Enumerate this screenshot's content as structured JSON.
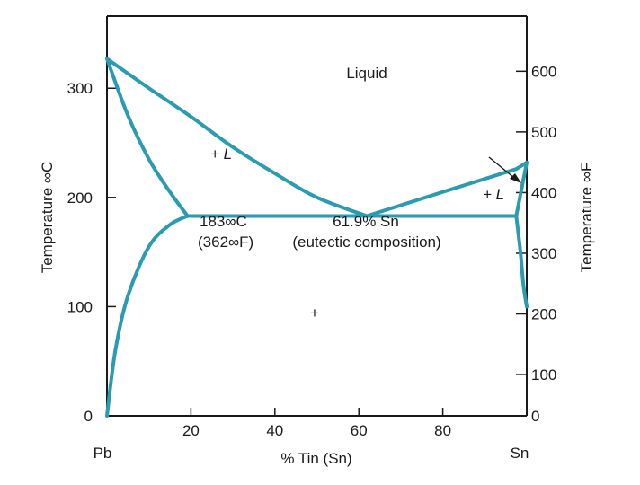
{
  "chart_data": {
    "type": "phase-diagram",
    "title": "",
    "xlabel": "% Tin (Sn)",
    "ylabel_left": "Temperature ∞C",
    "ylabel_right": "Temperature ∞F",
    "x_range": [
      0,
      100
    ],
    "y_range_c": [
      0,
      366
    ],
    "x_ticks": [
      20,
      40,
      60,
      80
    ],
    "x_end_labels": {
      "left": "Pb",
      "right": "Sn"
    },
    "y_ticks_c": [
      0,
      100,
      200,
      300
    ],
    "y_ticks_f": [
      0,
      100,
      200,
      300,
      400,
      500,
      600
    ],
    "line_color": "#2a9bb0",
    "curves": {
      "liquidus_left": [
        [
          0,
          327
        ],
        [
          10,
          300
        ],
        [
          20,
          274
        ],
        [
          30,
          246
        ],
        [
          40,
          222
        ],
        [
          50,
          200
        ],
        [
          61.9,
          183
        ]
      ],
      "liquidus_right": [
        [
          61.9,
          183
        ],
        [
          80,
          205
        ],
        [
          97.5,
          226
        ],
        [
          100,
          232
        ]
      ],
      "solidus_left": [
        [
          0,
          327
        ],
        [
          5,
          275
        ],
        [
          10,
          235
        ],
        [
          15,
          205
        ],
        [
          19.2,
          183
        ]
      ],
      "solvus_left": [
        [
          19.2,
          183
        ],
        [
          15,
          175
        ],
        [
          10,
          155
        ],
        [
          5,
          110
        ],
        [
          2,
          60
        ],
        [
          0,
          0
        ]
      ],
      "eutectic_line": [
        [
          19.2,
          183
        ],
        [
          97.5,
          183
        ]
      ],
      "solidus_right": [
        [
          97.5,
          183
        ],
        [
          100,
          232
        ]
      ],
      "solvus_right": [
        [
          97.5,
          183
        ],
        [
          98.5,
          150
        ],
        [
          99.2,
          120
        ],
        [
          100,
          100
        ]
      ]
    },
    "annotations": {
      "liquid": "Liquid",
      "alpha_liquid": "+ L",
      "beta_liquid": "+ L",
      "eutectic_temp_c": "183∞C",
      "eutectic_temp_f": "(362∞F)",
      "eutectic_comp": "61.9% Sn",
      "eutectic_note": "(eutectic composition)",
      "two_solid": "+"
    }
  }
}
